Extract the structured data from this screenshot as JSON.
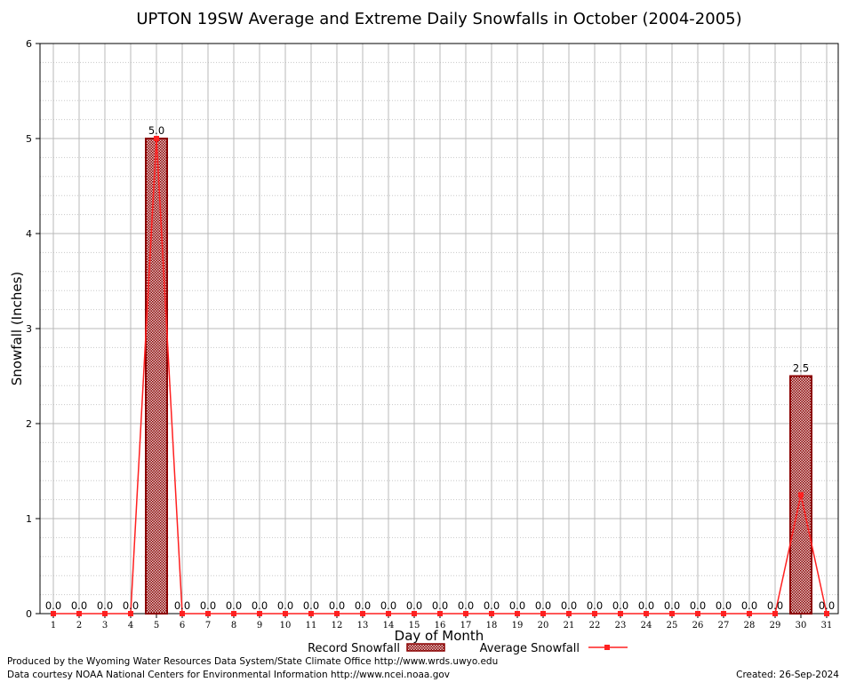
{
  "header": {
    "title": "UPTON 19SW Average and Extreme Daily Snowfalls in October (2004-2005)"
  },
  "footer": {
    "produced_by": "Produced by the Wyoming Water Resources Data System/State Climate Office http://www.wrds.uwyo.edu",
    "courtesy": "Data courtesy NOAA National Centers for Environmental Information http://www.ncei.noaa.gov",
    "created": "Created:  26-Sep-2024"
  },
  "colors": {
    "record_fill": "#c89a9a",
    "record_stroke": "#8b0000",
    "average_line": "#ff2020",
    "grid_major": "#b8b8b8",
    "grid_minor": "#c8c8c8"
  },
  "chart_data": {
    "type": "bar",
    "title": "UPTON 19SW Average and Extreme Daily Snowfalls in October (2004-2005)",
    "xlabel": "Day of Month",
    "ylabel": "Snowfall (Inches)",
    "ylim": [
      0,
      6
    ],
    "yticks": [
      0,
      1,
      2,
      3,
      4,
      5,
      6
    ],
    "grid": true,
    "legend_position": "bottom-center",
    "categories": [
      "1",
      "2",
      "3",
      "4",
      "5",
      "6",
      "7",
      "8",
      "9",
      "10",
      "11",
      "12",
      "13",
      "14",
      "15",
      "16",
      "17",
      "18",
      "19",
      "20",
      "21",
      "22",
      "23",
      "24",
      "25",
      "26",
      "27",
      "28",
      "29",
      "30",
      "31"
    ],
    "series": [
      {
        "name": "Record Snowfall",
        "kind": "bar",
        "values": [
          0,
          0,
          0,
          0,
          5.0,
          0,
          0,
          0,
          0,
          0,
          0,
          0,
          0,
          0,
          0,
          0,
          0,
          0,
          0,
          0,
          0,
          0,
          0,
          0,
          0,
          0,
          0,
          0,
          0,
          2.5,
          0
        ],
        "labels": [
          "0.0",
          "0.0",
          "0.0",
          "0.0",
          "5.0",
          "0.0",
          "0.0",
          "0.0",
          "0.0",
          "0.0",
          "0.0",
          "0.0",
          "0.0",
          "0.0",
          "0.0",
          "0.0",
          "0.0",
          "0.0",
          "0.0",
          "0.0",
          "0.0",
          "0.0",
          "0.0",
          "0.0",
          "0.0",
          "0.0",
          "0.0",
          "0.0",
          "0.0",
          "2.5",
          "0.0"
        ]
      },
      {
        "name": "Average Snowfall",
        "kind": "line",
        "values": [
          0,
          0,
          0,
          0,
          5.0,
          0,
          0,
          0,
          0,
          0,
          0,
          0,
          0,
          0,
          0,
          0,
          0,
          0,
          0,
          0,
          0,
          0,
          0,
          0,
          0,
          0,
          0,
          0,
          0,
          1.25,
          0
        ]
      }
    ]
  }
}
